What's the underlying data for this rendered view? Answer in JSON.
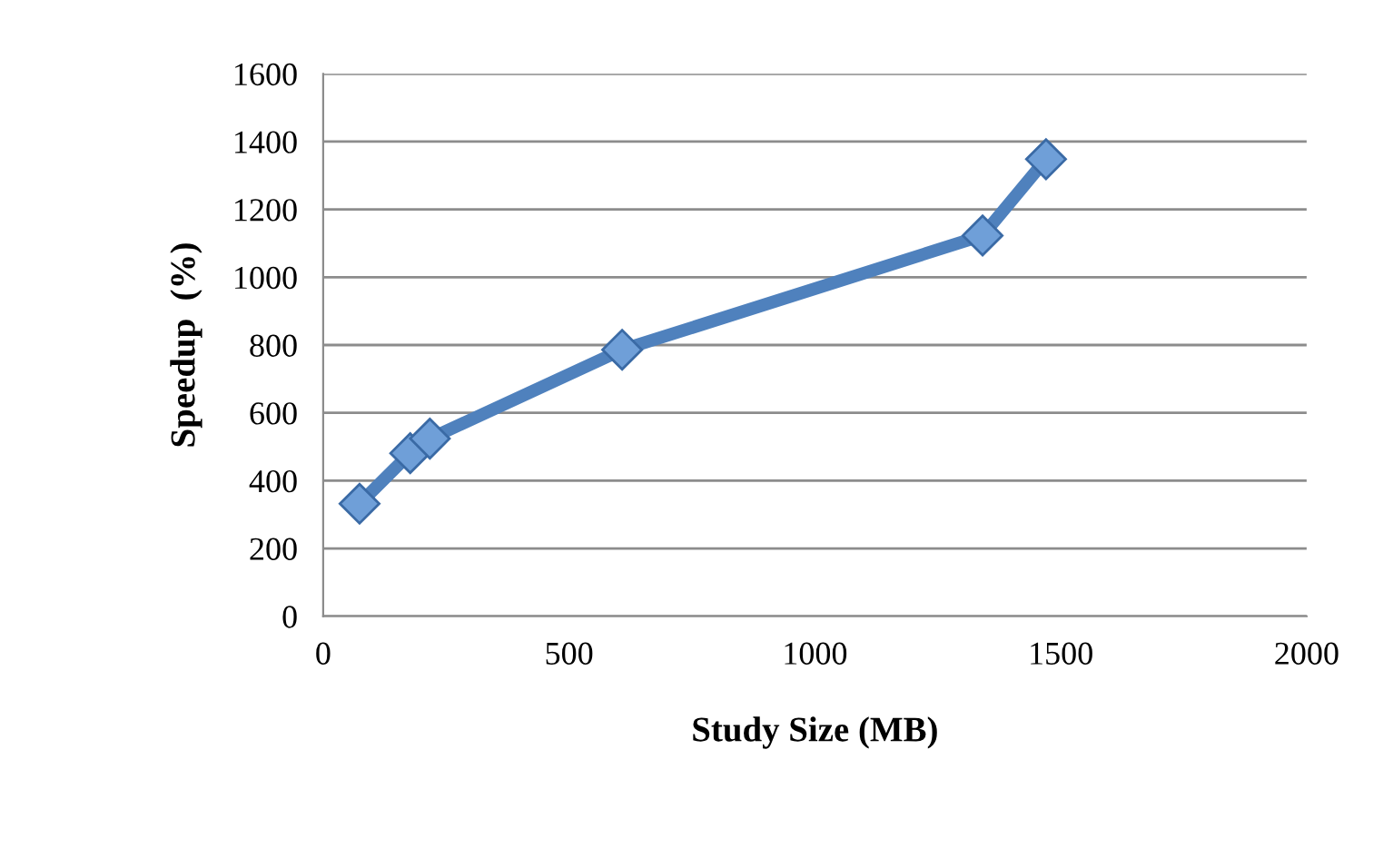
{
  "chart_data": {
    "type": "line",
    "xlabel": "Study Size (MB)",
    "ylabel": "Speedup  (%)",
    "x": [
      74,
      177,
      217,
      608,
      1341,
      1470
    ],
    "series": [
      {
        "color": "#4f81bd",
        "values": [
          332,
          481,
          524,
          786,
          1123,
          1348
        ]
      }
    ],
    "xlim": [
      0,
      2000
    ],
    "xticks": [
      0,
      500,
      1000,
      1500,
      2000
    ],
    "ylim": [
      0,
      1600
    ],
    "yticks": [
      0,
      200,
      400,
      600,
      800,
      1000,
      1200,
      1400,
      1600
    ],
    "grid": "y",
    "marker": "diamond",
    "line_style": "solid",
    "legend": false
  }
}
